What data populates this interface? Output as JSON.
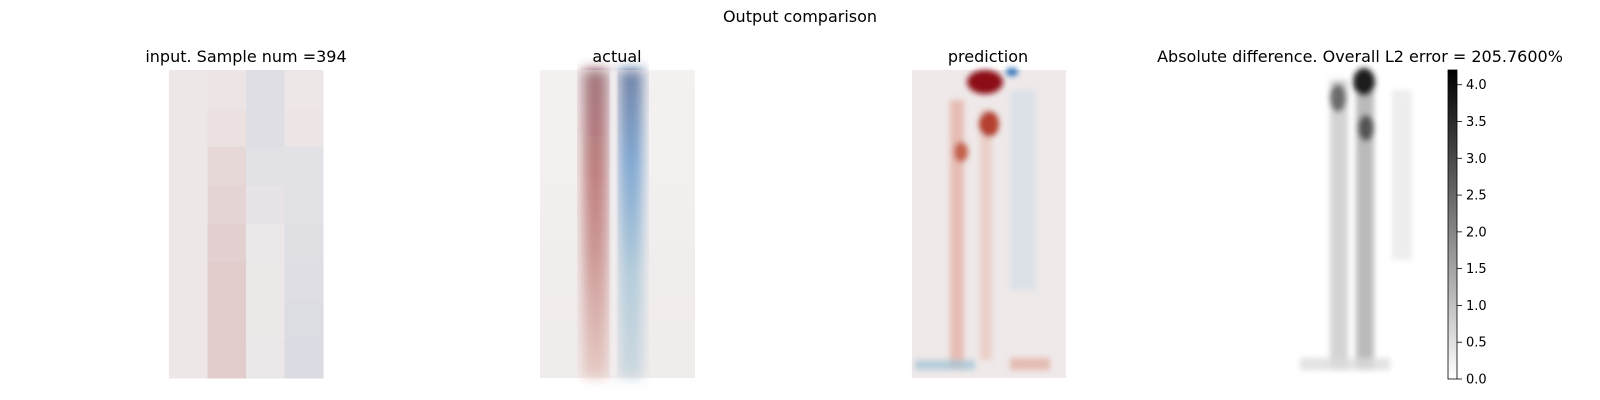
{
  "figure": {
    "suptitle": "Output comparison"
  },
  "colors": {
    "neutral": "#efe9e9",
    "red": "#8f1818",
    "blue": "#1b5ea8",
    "gray_high": "#000000",
    "gray_low": "#ffffff"
  },
  "chart_data": [
    {
      "type": "heatmap",
      "title": "input. Sample num =394",
      "grid_cols": 4,
      "grid_rows": 8,
      "cells": [
        [
          0.01,
          0.02,
          -0.08,
          0.01
        ],
        [
          0.01,
          0.04,
          -0.08,
          0.02
        ],
        [
          0.01,
          0.08,
          -0.06,
          -0.06
        ],
        [
          0.01,
          0.1,
          -0.04,
          -0.06
        ],
        [
          0.01,
          0.12,
          -0.02,
          -0.07
        ],
        [
          0.01,
          0.14,
          -0.01,
          -0.08
        ],
        [
          0.01,
          0.14,
          -0.01,
          -0.09
        ],
        [
          0.01,
          0.14,
          -0.02,
          -0.1
        ]
      ],
      "colormap": "diverging red-blue"
    },
    {
      "type": "heatmap",
      "title": "actual",
      "colormap": "diverging red-blue",
      "features": [
        {
          "kind": "positive band",
          "x_center": 0.42,
          "peak": 1.0
        },
        {
          "kind": "negative band",
          "x_center": 0.61,
          "peak": -1.0
        }
      ]
    },
    {
      "type": "heatmap",
      "title": "prediction",
      "colormap": "diverging red-blue"
    },
    {
      "type": "heatmap",
      "title": "Absolute difference. Overall L2 error = 205.7600%",
      "colormap": "gray_r",
      "colorbar": {
        "min": 0.0,
        "max": 4.2,
        "ticks": [
          "0.0",
          "0.5",
          "1.0",
          "1.5",
          "2.0",
          "2.5",
          "3.0",
          "3.5",
          "4.0"
        ],
        "tick_values": [
          0.0,
          0.5,
          1.0,
          1.5,
          2.0,
          2.5,
          3.0,
          3.5,
          4.0
        ]
      }
    }
  ]
}
